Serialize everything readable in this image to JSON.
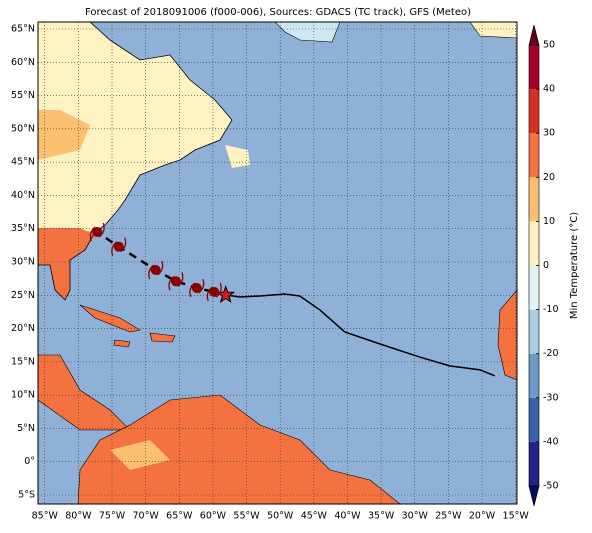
{
  "chart_data": {
    "type": "map",
    "title": "Forecast of 2018091006 (f000-006), Sources: GDACS (TC track), GFS (Meteo)",
    "xlim": [
      -86,
      -14.8
    ],
    "ylim": [
      -6.35,
      66.05
    ],
    "xticks": [
      {
        "value": -85,
        "label": "85°W"
      },
      {
        "value": -80,
        "label": "80°W"
      },
      {
        "value": -75,
        "label": "75°W"
      },
      {
        "value": -70,
        "label": "70°W"
      },
      {
        "value": -65,
        "label": "65°W"
      },
      {
        "value": -60,
        "label": "60°W"
      },
      {
        "value": -55,
        "label": "55°W"
      },
      {
        "value": -50,
        "label": "50°W"
      },
      {
        "value": -45,
        "label": "45°W"
      },
      {
        "value": -40,
        "label": "40°W"
      },
      {
        "value": -35,
        "label": "35°W"
      },
      {
        "value": -30,
        "label": "30°W"
      },
      {
        "value": -25,
        "label": "25°W"
      },
      {
        "value": -20,
        "label": "20°W"
      },
      {
        "value": -15,
        "label": "15°W"
      }
    ],
    "yticks": [
      {
        "value": 65,
        "label": "65°N"
      },
      {
        "value": 60,
        "label": "60°N"
      },
      {
        "value": 55,
        "label": "55°N"
      },
      {
        "value": 50,
        "label": "50°N"
      },
      {
        "value": 45,
        "label": "45°N"
      },
      {
        "value": 40,
        "label": "40°N"
      },
      {
        "value": 35,
        "label": "35°N"
      },
      {
        "value": 30,
        "label": "30°N"
      },
      {
        "value": 25,
        "label": "25°N"
      },
      {
        "value": 20,
        "label": "20°N"
      },
      {
        "value": 15,
        "label": "15°N"
      },
      {
        "value": 10,
        "label": "10°N"
      },
      {
        "value": 5,
        "label": "5°N"
      },
      {
        "value": 0,
        "label": "0°"
      },
      {
        "value": -5,
        "label": "5°S"
      }
    ],
    "grid": true,
    "colorbar": {
      "label": "Min Temperature (°C)",
      "ticks": [
        -50,
        -40,
        -30,
        -20,
        -10,
        0,
        10,
        20,
        30,
        40,
        50
      ],
      "colors": [
        "#23238a",
        "#3a62a8",
        "#6a9ac6",
        "#a9cde2",
        "#e3f3f8",
        "#fef3c0",
        "#fdbf70",
        "#f4723f",
        "#d73027",
        "#a50026"
      ],
      "under_color": "#0a0a60",
      "over_color": "#67001f"
    },
    "past_track": {
      "color": "#000000",
      "lon": [
        -58.1,
        -56.0,
        -53.0,
        -49.3,
        -47.1,
        -44.1,
        -40.4,
        -35.2,
        -29.2,
        -24.8,
        -20.3,
        -18.1
      ],
      "lat": [
        25.05,
        24.75,
        24.9,
        25.2,
        24.9,
        22.8,
        19.5,
        17.7,
        15.7,
        14.4,
        13.8,
        12.9
      ]
    },
    "forecast_track": {
      "color": "#8b0000",
      "lon": [
        -58.1,
        -59.8,
        -62.4,
        -65.5,
        -68.5,
        -74.0,
        -77.2
      ],
      "lat": [
        25.05,
        25.5,
        26.1,
        27.1,
        28.8,
        32.3,
        34.5
      ]
    }
  }
}
